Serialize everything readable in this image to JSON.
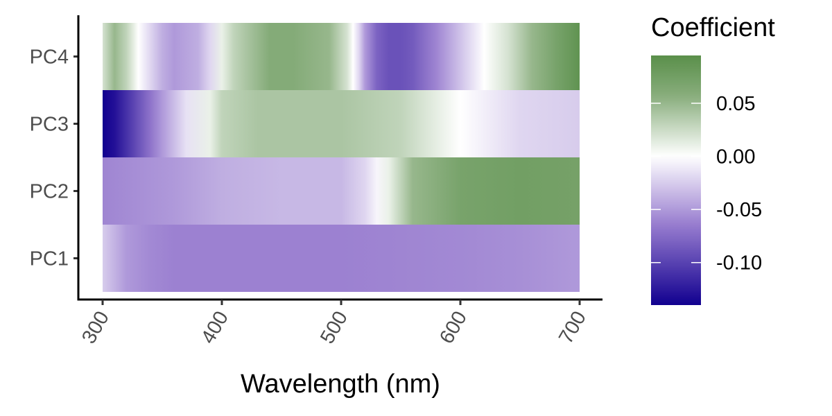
{
  "chart_data": {
    "type": "heatmap",
    "title": "",
    "xlabel": "Wavelength (nm)",
    "ylabel": "",
    "xlim": [
      300,
      700
    ],
    "x_ticks": [
      300,
      400,
      500,
      600,
      700
    ],
    "x_tick_labels": [
      "300",
      "400",
      "500",
      "600",
      "700"
    ],
    "x_tick_label_rotation_deg": -60,
    "grid": false,
    "rows": [
      {
        "label": "PC1",
        "x": [
          300,
          320,
          340,
          360,
          400,
          450,
          500,
          550,
          600,
          650,
          700
        ],
        "values": [
          -0.025,
          -0.05,
          -0.058,
          -0.062,
          -0.062,
          -0.062,
          -0.062,
          -0.06,
          -0.058,
          -0.055,
          -0.05
        ]
      },
      {
        "label": "PC2",
        "x": [
          300,
          330,
          360,
          400,
          450,
          500,
          520,
          530,
          540,
          550,
          560,
          600,
          650,
          700
        ],
        "values": [
          -0.06,
          -0.055,
          -0.05,
          -0.04,
          -0.035,
          -0.035,
          -0.02,
          -0.005,
          0.01,
          0.03,
          0.05,
          0.07,
          0.075,
          0.072
        ]
      },
      {
        "label": "PC3",
        "x": [
          300,
          310,
          320,
          330,
          340,
          350,
          370,
          390,
          400,
          430,
          500,
          550,
          600,
          650,
          700
        ],
        "values": [
          -0.14,
          -0.13,
          -0.11,
          -0.09,
          -0.07,
          -0.05,
          -0.015,
          0.01,
          0.03,
          0.04,
          0.04,
          0.03,
          0.0,
          -0.02,
          -0.025
        ]
      },
      {
        "label": "PC4",
        "x": [
          300,
          310,
          320,
          330,
          340,
          350,
          360,
          380,
          390,
          400,
          410,
          420,
          440,
          460,
          490,
          505,
          510,
          515,
          520,
          530,
          540,
          550,
          560,
          580,
          600,
          620,
          630,
          640,
          660,
          680,
          700
        ],
        "values": [
          0.02,
          0.05,
          0.03,
          0.0,
          -0.02,
          -0.04,
          -0.05,
          -0.04,
          -0.02,
          0.01,
          0.03,
          0.04,
          0.06,
          0.06,
          0.05,
          0.02,
          0.0,
          -0.02,
          -0.05,
          -0.08,
          -0.09,
          -0.09,
          -0.085,
          -0.06,
          -0.03,
          0.0,
          0.01,
          0.02,
          0.05,
          0.07,
          0.09
        ]
      }
    ],
    "legend": {
      "title": "Coefficient",
      "position": "right",
      "min": -0.14,
      "max": 0.095,
      "ticks": [
        0.05,
        0.0,
        -0.05,
        -0.1
      ],
      "tick_labels": [
        "0.05",
        "0.00",
        "-0.05",
        "-0.10"
      ]
    },
    "colors": {
      "low": "#11008f",
      "mid_low": "#9a7fd0",
      "mid": "#ffffff",
      "mid_high": "#88ad7c",
      "high": "#5a8f4a"
    }
  }
}
